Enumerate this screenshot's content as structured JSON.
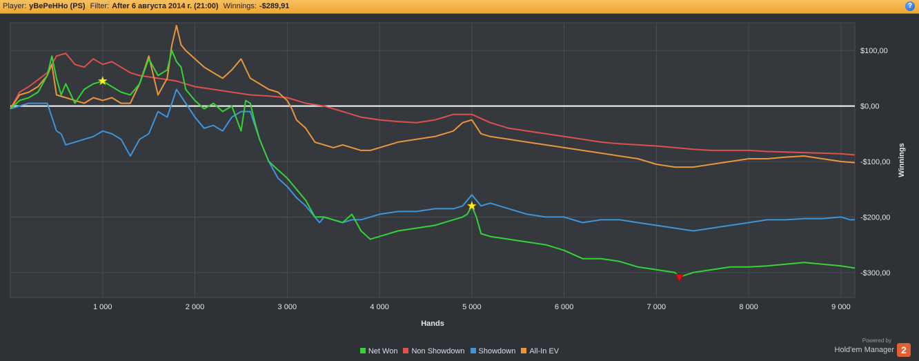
{
  "header": {
    "player_label": "Player:",
    "player_name": "yBePeHHo (PS)",
    "filter_label": "Filter:",
    "filter_value": "After 6 августа 2014 г. (21:00)",
    "winnings_label": "Winnings:",
    "winnings_value": "-$289,91",
    "help_glyph": "?"
  },
  "branding": {
    "powered_by": "Powered by",
    "name": "Hold'em Manager",
    "logo_text": "2"
  },
  "chart_data": {
    "type": "line",
    "xlabel": "Hands",
    "ylabel": "Winnings",
    "xlim": [
      0,
      9150
    ],
    "ylim": [
      -345,
      150
    ],
    "x_ticks": [
      1000,
      2000,
      3000,
      4000,
      5000,
      6000,
      7000,
      8000,
      9000
    ],
    "x_tick_labels": [
      "1 000",
      "2 000",
      "3 000",
      "4 000",
      "5 000",
      "6 000",
      "7 000",
      "8 000",
      "9 000"
    ],
    "y_ticks": [
      100,
      0,
      -100,
      -200,
      -300
    ],
    "y_tick_labels": [
      "$100,00",
      "$0,00",
      "-$100,00",
      "-$200,00",
      "-$300,00"
    ],
    "grid": true,
    "legend_position": "bottom-center",
    "series": [
      {
        "name": "Net Won",
        "color": "#35d435",
        "x": [
          0,
          100,
          200,
          300,
          400,
          450,
          500,
          550,
          600,
          700,
          800,
          900,
          1000,
          1100,
          1200,
          1300,
          1400,
          1500,
          1600,
          1700,
          1750,
          1800,
          1850,
          1900,
          2000,
          2100,
          2200,
          2300,
          2400,
          2500,
          2550,
          2600,
          2650,
          2700,
          2800,
          2900,
          3000,
          3100,
          3200,
          3300,
          3400,
          3500,
          3600,
          3700,
          3800,
          3900,
          4000,
          4200,
          4400,
          4600,
          4800,
          4900,
          4950,
          5000,
          5050,
          5100,
          5200,
          5400,
          5600,
          5800,
          6000,
          6200,
          6400,
          6600,
          6800,
          7000,
          7200,
          7250,
          7400,
          7600,
          7800,
          8000,
          8200,
          8400,
          8600,
          8800,
          9000,
          9150
        ],
        "y": [
          -5,
          10,
          15,
          25,
          55,
          90,
          50,
          20,
          40,
          5,
          30,
          40,
          45,
          35,
          25,
          20,
          40,
          85,
          55,
          65,
          100,
          80,
          70,
          30,
          10,
          -5,
          5,
          -10,
          0,
          -45,
          10,
          5,
          -30,
          -60,
          -100,
          -115,
          -130,
          -150,
          -170,
          -200,
          -200,
          -205,
          -210,
          -195,
          -225,
          -240,
          -235,
          -225,
          -220,
          -215,
          -205,
          -200,
          -195,
          -180,
          -200,
          -230,
          -235,
          -240,
          -245,
          -250,
          -260,
          -275,
          -275,
          -280,
          -290,
          -295,
          -300,
          -308,
          -300,
          -295,
          -290,
          -290,
          -288,
          -285,
          -282,
          -285,
          -288,
          -292
        ]
      },
      {
        "name": "Non Showdown",
        "color": "#e0504c",
        "x": [
          0,
          100,
          200,
          400,
          500,
          600,
          700,
          800,
          900,
          1000,
          1100,
          1200,
          1300,
          1400,
          1600,
          1800,
          2000,
          2200,
          2400,
          2600,
          2800,
          3000,
          3200,
          3400,
          3600,
          3800,
          4000,
          4200,
          4400,
          4600,
          4800,
          5000,
          5200,
          5400,
          5600,
          5800,
          6000,
          6200,
          6400,
          6600,
          6800,
          7000,
          7200,
          7400,
          7600,
          7800,
          8000,
          8200,
          8400,
          8600,
          8800,
          9000,
          9150
        ],
        "y": [
          -5,
          25,
          35,
          60,
          90,
          95,
          75,
          70,
          85,
          75,
          80,
          70,
          60,
          55,
          50,
          45,
          35,
          30,
          25,
          20,
          18,
          15,
          5,
          0,
          -10,
          -20,
          -25,
          -28,
          -30,
          -25,
          -15,
          -15,
          -30,
          -40,
          -45,
          -50,
          -55,
          -60,
          -65,
          -68,
          -70,
          -72,
          -75,
          -78,
          -80,
          -80,
          -80,
          -82,
          -83,
          -84,
          -85,
          -86,
          -88
        ]
      },
      {
        "name": "Showdown",
        "color": "#3d96dc",
        "x": [
          0,
          100,
          200,
          400,
          500,
          550,
          600,
          700,
          800,
          900,
          1000,
          1100,
          1200,
          1300,
          1400,
          1500,
          1600,
          1700,
          1800,
          1900,
          2000,
          2100,
          2200,
          2300,
          2400,
          2500,
          2600,
          2700,
          2800,
          2900,
          3000,
          3100,
          3200,
          3300,
          3350,
          3400,
          3500,
          3600,
          3700,
          3800,
          3900,
          4000,
          4200,
          4400,
          4600,
          4800,
          4900,
          5000,
          5100,
          5200,
          5400,
          5600,
          5800,
          6000,
          6200,
          6400,
          6600,
          6800,
          7000,
          7200,
          7400,
          7600,
          7800,
          8000,
          8200,
          8400,
          8600,
          8800,
          9000,
          9100,
          9150
        ],
        "y": [
          -5,
          0,
          5,
          5,
          -45,
          -50,
          -70,
          -65,
          -60,
          -55,
          -45,
          -50,
          -60,
          -90,
          -60,
          -50,
          -10,
          -20,
          30,
          5,
          -20,
          -40,
          -35,
          -45,
          -20,
          -10,
          -10,
          -60,
          -100,
          -130,
          -145,
          -165,
          -180,
          -200,
          -210,
          -200,
          -205,
          -210,
          -205,
          -205,
          -200,
          -195,
          -190,
          -190,
          -185,
          -185,
          -180,
          -160,
          -180,
          -175,
          -185,
          -195,
          -200,
          -200,
          -210,
          -205,
          -205,
          -210,
          -215,
          -220,
          -225,
          -220,
          -215,
          -210,
          -205,
          -205,
          -203,
          -203,
          -200,
          -205,
          -205
        ]
      },
      {
        "name": "All-In EV",
        "color": "#eb963c",
        "x": [
          0,
          100,
          200,
          300,
          400,
          450,
          500,
          600,
          700,
          800,
          900,
          1000,
          1100,
          1200,
          1300,
          1400,
          1500,
          1600,
          1700,
          1750,
          1800,
          1850,
          1900,
          2000,
          2100,
          2200,
          2300,
          2400,
          2500,
          2600,
          2700,
          2800,
          2900,
          3000,
          3050,
          3100,
          3200,
          3300,
          3400,
          3500,
          3600,
          3700,
          3800,
          3900,
          4000,
          4200,
          4400,
          4600,
          4800,
          4900,
          5000,
          5100,
          5200,
          5400,
          5600,
          5800,
          6000,
          6200,
          6400,
          6600,
          6800,
          7000,
          7200,
          7400,
          7600,
          7800,
          8000,
          8200,
          8400,
          8600,
          8800,
          9000,
          9150
        ],
        "y": [
          -5,
          20,
          25,
          35,
          55,
          75,
          20,
          15,
          10,
          5,
          15,
          10,
          15,
          5,
          5,
          40,
          90,
          20,
          50,
          110,
          145,
          110,
          100,
          85,
          70,
          60,
          50,
          65,
          85,
          50,
          40,
          30,
          25,
          10,
          -5,
          -25,
          -40,
          -65,
          -70,
          -75,
          -70,
          -75,
          -80,
          -80,
          -75,
          -65,
          -60,
          -55,
          -45,
          -30,
          -25,
          -50,
          -55,
          -60,
          -65,
          -70,
          -75,
          -80,
          -85,
          -90,
          -95,
          -105,
          -110,
          -110,
          -105,
          -100,
          -95,
          -95,
          -92,
          -90,
          -95,
          -100,
          -102
        ]
      }
    ]
  }
}
